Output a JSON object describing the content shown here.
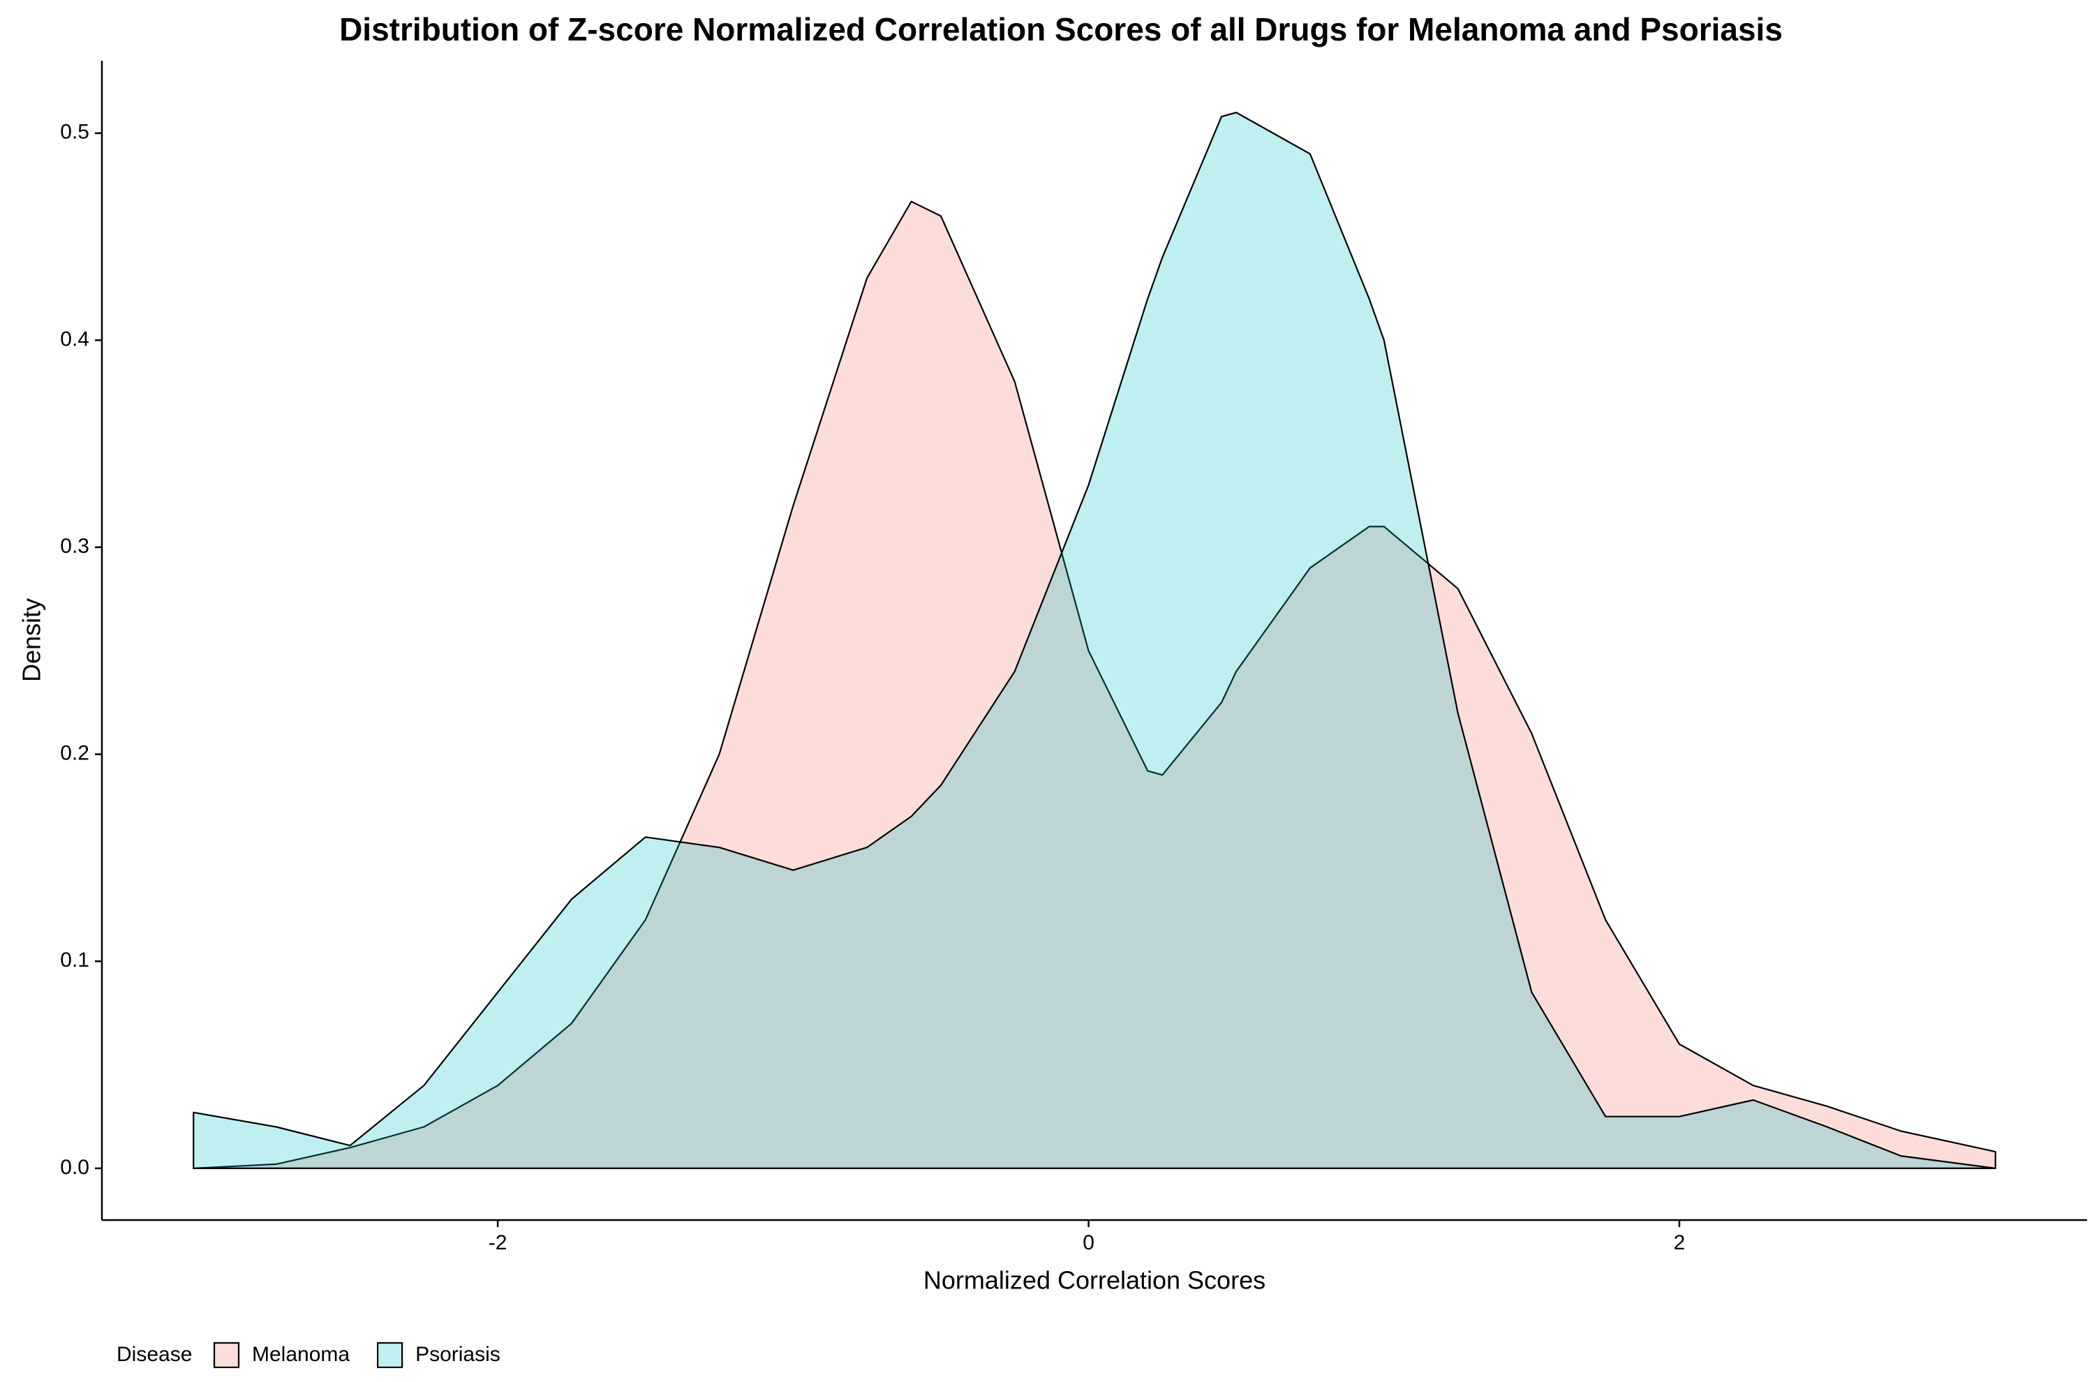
{
  "chart_data": {
    "type": "density",
    "title": "Distribution of Z-score Normalized Correlation Scores of all Drugs for Melanoma and Psoriasis",
    "x_label": "Normalized Correlation Scores",
    "y_label": "Density",
    "legend_title": "Disease",
    "legend_position": "bottom-left",
    "x": [
      -3.03,
      -2.75,
      -2.5,
      -2.25,
      -2,
      -1.75,
      -1.5,
      -1.25,
      -1,
      -0.75,
      -0.6,
      -0.5,
      -0.25,
      0,
      0.2,
      0.25,
      0.45,
      0.5,
      0.75,
      0.95,
      1,
      1.25,
      1.5,
      1.75,
      2,
      2.25,
      2.5,
      2.75,
      3.07
    ],
    "series": [
      {
        "name": "Melanoma",
        "color": "#F8766D",
        "values": [
          0.0,
          0.002,
          0.01,
          0.02,
          0.04,
          0.07,
          0.12,
          0.2,
          0.32,
          0.43,
          0.467,
          0.46,
          0.38,
          0.25,
          0.192,
          0.19,
          0.225,
          0.24,
          0.29,
          0.31,
          0.31,
          0.28,
          0.21,
          0.12,
          0.06,
          0.04,
          0.03,
          0.018,
          0.008
        ]
      },
      {
        "name": "Psoriasis",
        "color": "#00BFC4",
        "values": [
          0.027,
          0.02,
          0.011,
          0.04,
          0.085,
          0.13,
          0.16,
          0.155,
          0.144,
          0.155,
          0.17,
          0.185,
          0.24,
          0.33,
          0.42,
          0.44,
          0.508,
          0.51,
          0.49,
          0.42,
          0.4,
          0.22,
          0.085,
          0.025,
          0.025,
          0.033,
          0.02,
          0.006,
          0.0
        ]
      }
    ],
    "xlim": [
      -3.34,
      3.38
    ],
    "ylim": [
      -0.025,
      0.535
    ],
    "xticks": [
      -2,
      0,
      2
    ],
    "yticks": [
      {
        "value": 0,
        "label": "0.0"
      },
      0.1,
      0.2,
      0.3,
      0.4,
      0.5
    ],
    "fill_opacity": 0.25
  }
}
